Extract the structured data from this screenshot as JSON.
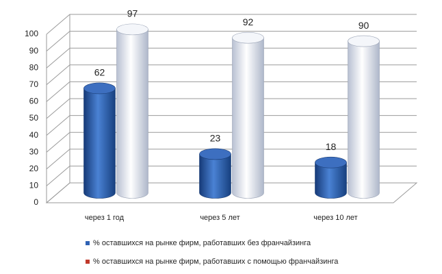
{
  "chart_data": {
    "type": "bar",
    "categories": [
      "через 1 год",
      "через 5 лет",
      "через 10 лет"
    ],
    "series": [
      {
        "name": "% оставшихся на рынке фирм, работавших без франчайзинга",
        "color": "#2f62b4",
        "legend_color": "#2f62b4",
        "values": [
          62,
          23,
          18
        ]
      },
      {
        "name": "% оставшихся на рынке фирм, работавших с помощью франчайзинга",
        "color": "#e6eaf2",
        "legend_color": "#c0392b",
        "values": [
          97,
          92,
          90
        ]
      }
    ],
    "ylim": [
      0,
      100
    ],
    "yticks": [
      0,
      10,
      20,
      30,
      40,
      50,
      60,
      70,
      80,
      90,
      100
    ],
    "grid": true
  }
}
